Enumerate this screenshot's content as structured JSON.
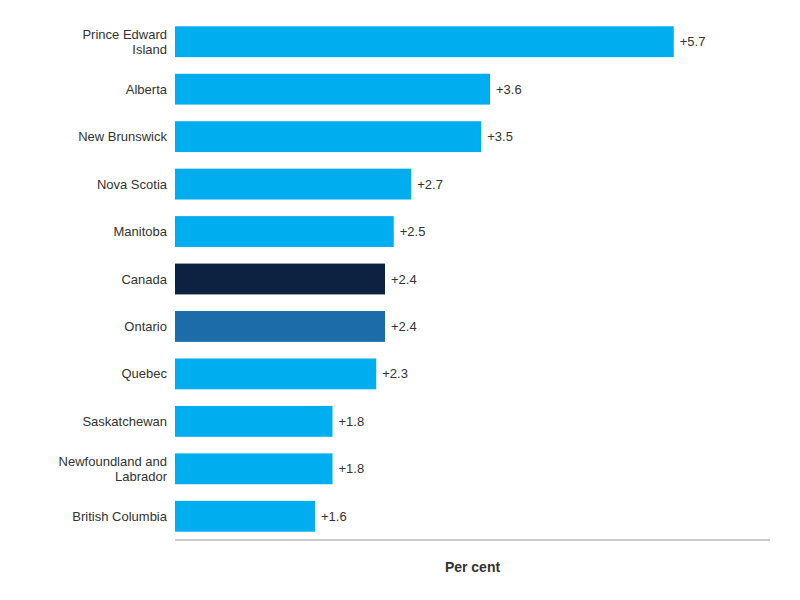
{
  "chart_data": {
    "type": "bar",
    "orientation": "horizontal",
    "categories": [
      "Prince Edward\nIsland",
      "Alberta",
      "New Brunswick",
      "Nova Scotia",
      "Manitoba",
      "Canada",
      "Ontario",
      "Quebec",
      "Saskatchewan",
      "Newfoundland and\nLabrador",
      "British Columbia"
    ],
    "values": [
      5.7,
      3.6,
      3.5,
      2.7,
      2.5,
      2.4,
      2.4,
      2.3,
      1.8,
      1.8,
      1.6
    ],
    "value_labels": [
      "+5.7",
      "+3.6",
      "+3.5",
      "+2.7",
      "+2.5",
      "+2.4",
      "+2.4",
      "+2.3",
      "+1.8",
      "+1.8",
      "+1.6"
    ],
    "colors": [
      "#00AEEF",
      "#00AEEF",
      "#00AEEF",
      "#00AEEF",
      "#00AEEF",
      "#0D2240",
      "#1B6CA8",
      "#00AEEF",
      "#00AEEF",
      "#00AEEF",
      "#00AEEF"
    ],
    "xlabel": "Per cent",
    "xlim": [
      0,
      6.8
    ],
    "xticks": [],
    "tick_labels": "y",
    "data_labels": true,
    "grid": false
  }
}
